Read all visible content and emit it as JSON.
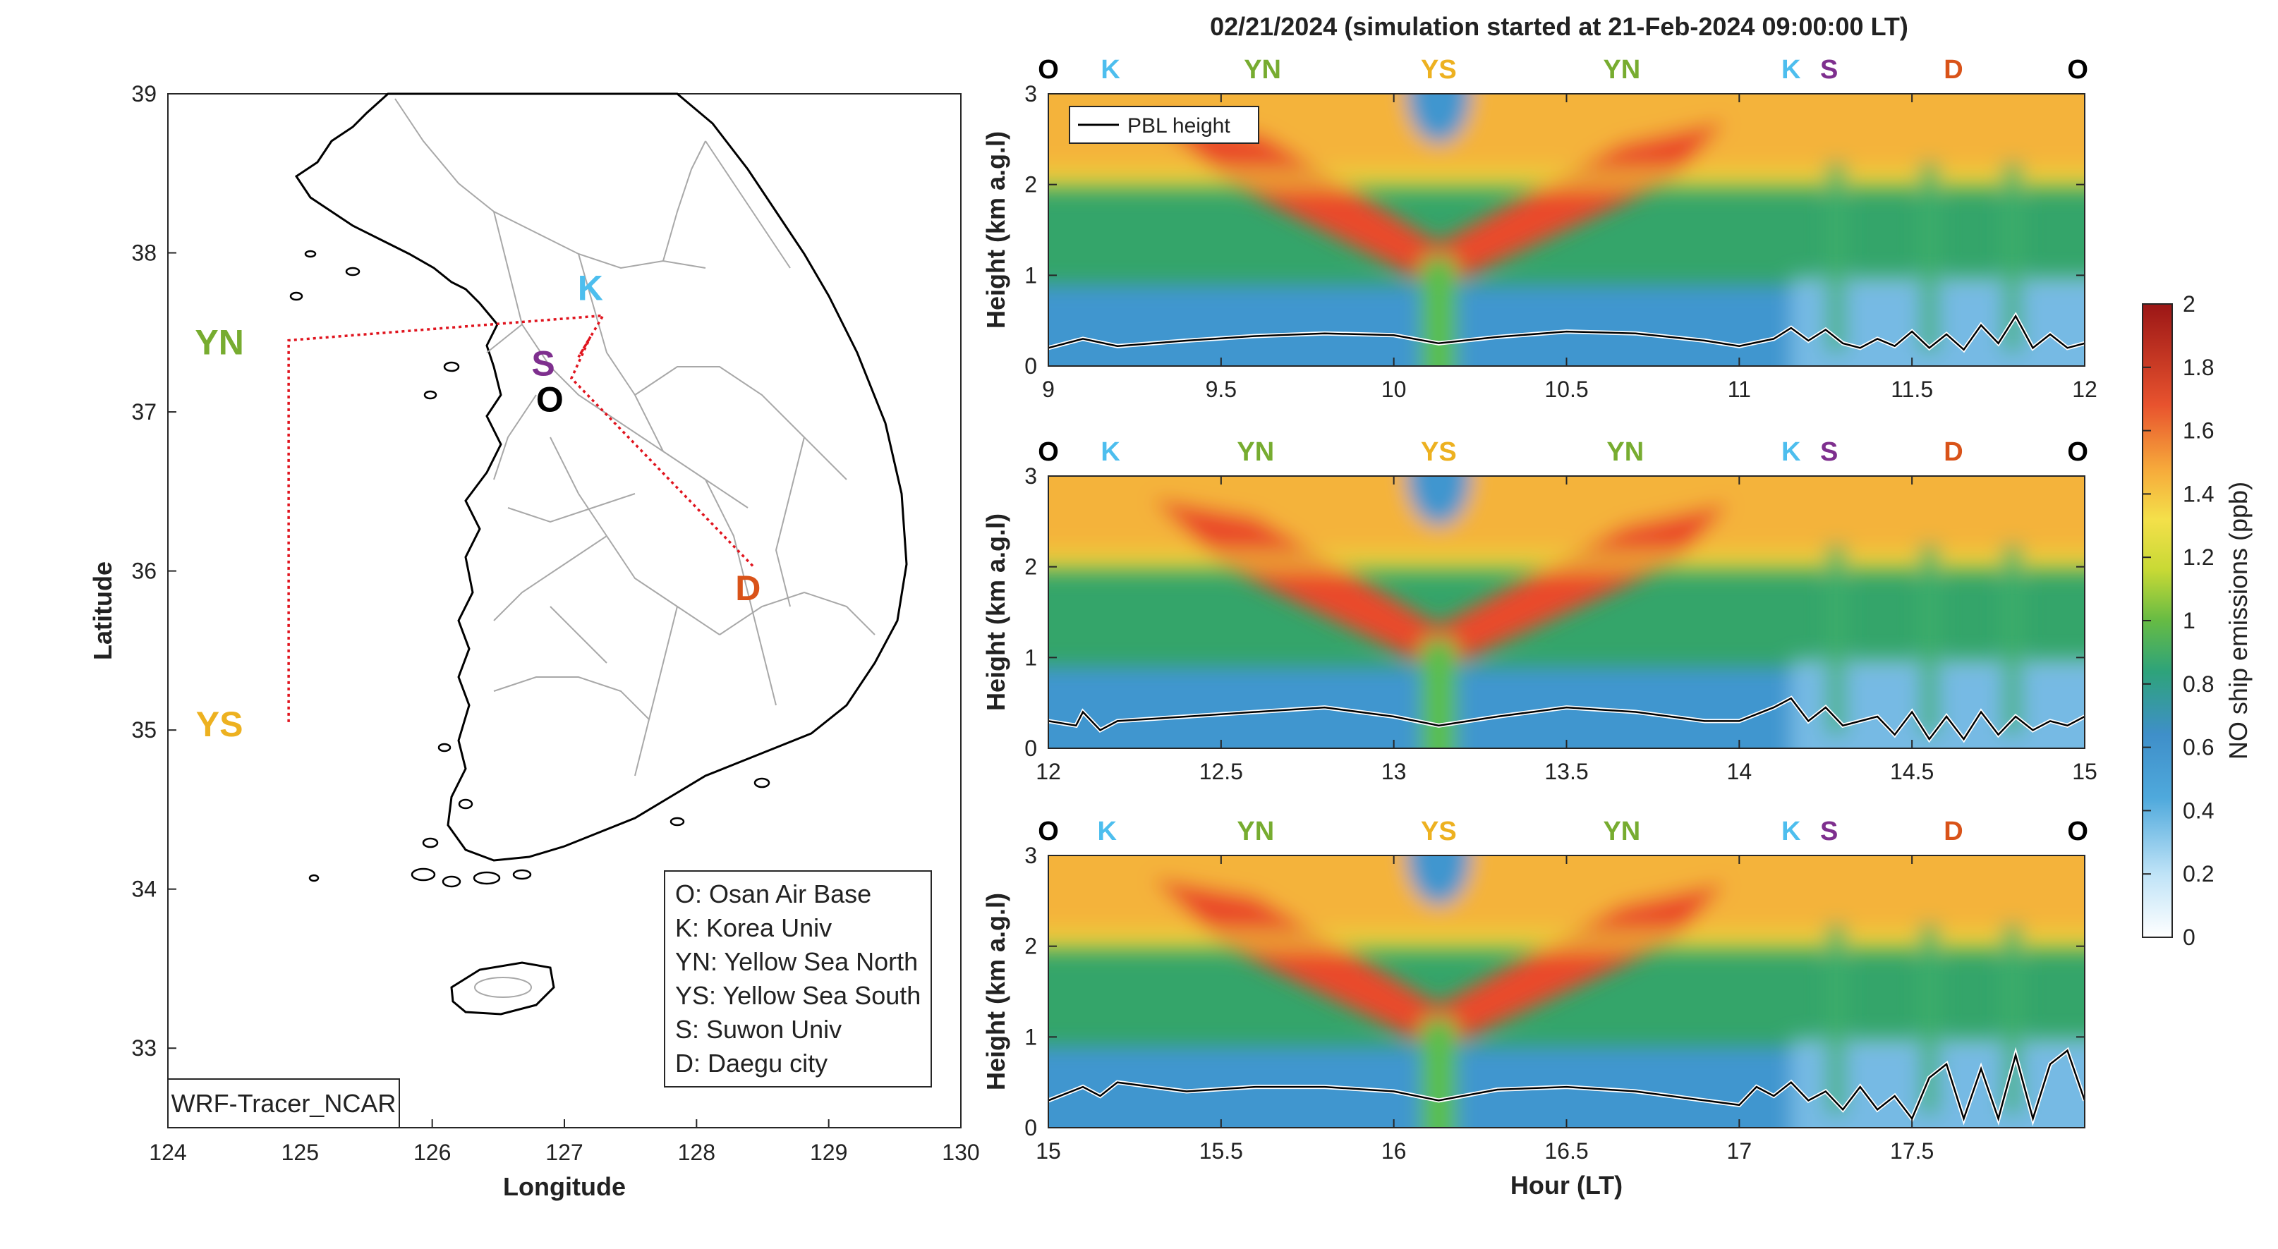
{
  "figure": {
    "title": "02/21/2024 (simulation started at 21-Feb-2024 09:00:00 LT)",
    "model_label": "WRF-Tracer_NCAR"
  },
  "map": {
    "xlabel": "Longitude",
    "ylabel": "Latitude",
    "xlim": [
      124,
      130
    ],
    "ylim": [
      32.5,
      39
    ],
    "xticks": [
      "124",
      "125",
      "126",
      "127",
      "128",
      "129",
      "130"
    ],
    "yticks": [
      "33",
      "34",
      "35",
      "36",
      "37",
      "38",
      "39"
    ],
    "sites": [
      {
        "code": "YN",
        "lon": 124.7,
        "lat": 37.45,
        "color": "#77ac30"
      },
      {
        "code": "YS",
        "lon": 124.7,
        "lat": 35.05,
        "color": "#edb120"
      },
      {
        "code": "K",
        "lon": 127.25,
        "lat": 37.65,
        "color": "#4dbeee"
      },
      {
        "code": "S",
        "lon": 127.0,
        "lat": 37.3,
        "color": "#7e2f8e"
      },
      {
        "code": "O",
        "lon": 127.05,
        "lat": 37.1,
        "color": "#000000"
      },
      {
        "code": "D",
        "lon": 128.55,
        "lat": 35.95,
        "color": "#d95319"
      }
    ],
    "legend": [
      "O: Osan Air Base",
      "K: Korea Univ",
      "YN: Yellow Sea North",
      "YS: Yellow Sea South",
      "S: Suwon Univ",
      "D: Daegu city"
    ]
  },
  "chart_data": [
    {
      "type": "heatmap",
      "xlabel": "",
      "ylabel": "Height (km a.g.l)",
      "xlim": [
        9,
        12
      ],
      "ylim": [
        0,
        3
      ],
      "xticks": [
        "9",
        "9.5",
        "10",
        "10.5",
        "11",
        "11.5",
        "12"
      ],
      "yticks": [
        "0",
        "1",
        "2",
        "3"
      ],
      "series_name": "PBL height",
      "legend": "top-left",
      "sites": [
        {
          "code": "O",
          "x": 9.0,
          "color": "#000000"
        },
        {
          "code": "K",
          "x": 9.18,
          "color": "#4dbeee"
        },
        {
          "code": "YN",
          "x": 9.62,
          "color": "#77ac30"
        },
        {
          "code": "YS",
          "x": 10.13,
          "color": "#edb120"
        },
        {
          "code": "YN",
          "x": 10.66,
          "color": "#77ac30"
        },
        {
          "code": "K",
          "x": 11.15,
          "color": "#4dbeee"
        },
        {
          "code": "S",
          "x": 11.26,
          "color": "#7e2f8e"
        },
        {
          "code": "D",
          "x": 11.62,
          "color": "#d95319"
        },
        {
          "code": "O",
          "x": 11.98,
          "color": "#000000"
        }
      ],
      "pbl": {
        "x": [
          9.0,
          9.1,
          9.2,
          9.4,
          9.6,
          9.8,
          10.0,
          10.13,
          10.3,
          10.5,
          10.7,
          10.9,
          11.0,
          11.1,
          11.15,
          11.2,
          11.25,
          11.3,
          11.35,
          11.4,
          11.45,
          11.5,
          11.55,
          11.6,
          11.65,
          11.7,
          11.75,
          11.8,
          11.85,
          11.9,
          11.95,
          12.0
        ],
        "y": [
          0.2,
          0.3,
          0.22,
          0.28,
          0.33,
          0.36,
          0.34,
          0.25,
          0.32,
          0.38,
          0.36,
          0.28,
          0.22,
          0.3,
          0.42,
          0.28,
          0.4,
          0.25,
          0.2,
          0.3,
          0.22,
          0.38,
          0.2,
          0.35,
          0.18,
          0.45,
          0.25,
          0.55,
          0.2,
          0.35,
          0.2,
          0.25
        ]
      }
    },
    {
      "type": "heatmap",
      "xlabel": "",
      "ylabel": "Height (km a.g.l)",
      "xlim": [
        12,
        15
      ],
      "ylim": [
        0,
        3
      ],
      "xticks": [
        "12",
        "12.5",
        "13",
        "13.5",
        "14",
        "14.5",
        "15"
      ],
      "yticks": [
        "0",
        "1",
        "2",
        "3"
      ],
      "sites": [
        {
          "code": "O",
          "x": 12.0,
          "color": "#000000"
        },
        {
          "code": "K",
          "x": 12.18,
          "color": "#4dbeee"
        },
        {
          "code": "YN",
          "x": 12.6,
          "color": "#77ac30"
        },
        {
          "code": "YS",
          "x": 13.13,
          "color": "#edb120"
        },
        {
          "code": "YN",
          "x": 13.67,
          "color": "#77ac30"
        },
        {
          "code": "K",
          "x": 14.15,
          "color": "#4dbeee"
        },
        {
          "code": "S",
          "x": 14.26,
          "color": "#7e2f8e"
        },
        {
          "code": "D",
          "x": 14.62,
          "color": "#d95319"
        },
        {
          "code": "O",
          "x": 14.98,
          "color": "#000000"
        }
      ],
      "pbl": {
        "x": [
          12.0,
          12.08,
          12.1,
          12.15,
          12.2,
          12.4,
          12.6,
          12.8,
          13.0,
          13.13,
          13.3,
          13.5,
          13.7,
          13.9,
          14.0,
          14.1,
          14.15,
          14.2,
          14.25,
          14.3,
          14.4,
          14.45,
          14.5,
          14.55,
          14.6,
          14.65,
          14.7,
          14.75,
          14.8,
          14.85,
          14.9,
          14.95,
          15.0
        ],
        "y": [
          0.3,
          0.25,
          0.4,
          0.2,
          0.3,
          0.35,
          0.4,
          0.45,
          0.35,
          0.25,
          0.35,
          0.45,
          0.4,
          0.3,
          0.3,
          0.45,
          0.55,
          0.3,
          0.45,
          0.25,
          0.35,
          0.15,
          0.4,
          0.1,
          0.35,
          0.1,
          0.4,
          0.15,
          0.35,
          0.2,
          0.3,
          0.25,
          0.35
        ]
      }
    },
    {
      "type": "heatmap",
      "xlabel": "Hour (LT)",
      "ylabel": "Height (km a.g.l)",
      "xlim": [
        15,
        18
      ],
      "ylim": [
        0,
        3
      ],
      "xticks": [
        "15",
        "15.5",
        "16",
        "16.5",
        "17",
        "17.5"
      ],
      "yticks": [
        "0",
        "1",
        "2",
        "3"
      ],
      "sites": [
        {
          "code": "O",
          "x": 15.0,
          "color": "#000000"
        },
        {
          "code": "K",
          "x": 15.17,
          "color": "#4dbeee"
        },
        {
          "code": "YN",
          "x": 15.6,
          "color": "#77ac30"
        },
        {
          "code": "YS",
          "x": 16.13,
          "color": "#edb120"
        },
        {
          "code": "YN",
          "x": 16.66,
          "color": "#77ac30"
        },
        {
          "code": "K",
          "x": 17.15,
          "color": "#4dbeee"
        },
        {
          "code": "S",
          "x": 17.26,
          "color": "#7e2f8e"
        },
        {
          "code": "D",
          "x": 17.62,
          "color": "#d95319"
        },
        {
          "code": "O",
          "x": 17.98,
          "color": "#000000"
        }
      ],
      "pbl": {
        "x": [
          15.0,
          15.1,
          15.15,
          15.2,
          15.4,
          15.6,
          15.8,
          16.0,
          16.13,
          16.3,
          16.5,
          16.7,
          16.9,
          17.0,
          17.05,
          17.1,
          17.15,
          17.2,
          17.25,
          17.3,
          17.35,
          17.4,
          17.45,
          17.5,
          17.55,
          17.6,
          17.65,
          17.7,
          17.75,
          17.8,
          17.85,
          17.9,
          17.95,
          18.0
        ],
        "y": [
          0.3,
          0.45,
          0.35,
          0.5,
          0.4,
          0.45,
          0.45,
          0.4,
          0.3,
          0.42,
          0.45,
          0.4,
          0.3,
          0.25,
          0.45,
          0.35,
          0.5,
          0.3,
          0.4,
          0.2,
          0.45,
          0.2,
          0.35,
          0.1,
          0.55,
          0.7,
          0.1,
          0.65,
          0.1,
          0.8,
          0.1,
          0.7,
          0.85,
          0.3
        ]
      }
    }
  ],
  "colorbar": {
    "label": "NO ship emissions (ppb)",
    "ticks": [
      "0",
      "0.2",
      "0.4",
      "0.6",
      "0.8",
      "1",
      "1.2",
      "1.4",
      "1.6",
      "1.8",
      "2"
    ]
  }
}
